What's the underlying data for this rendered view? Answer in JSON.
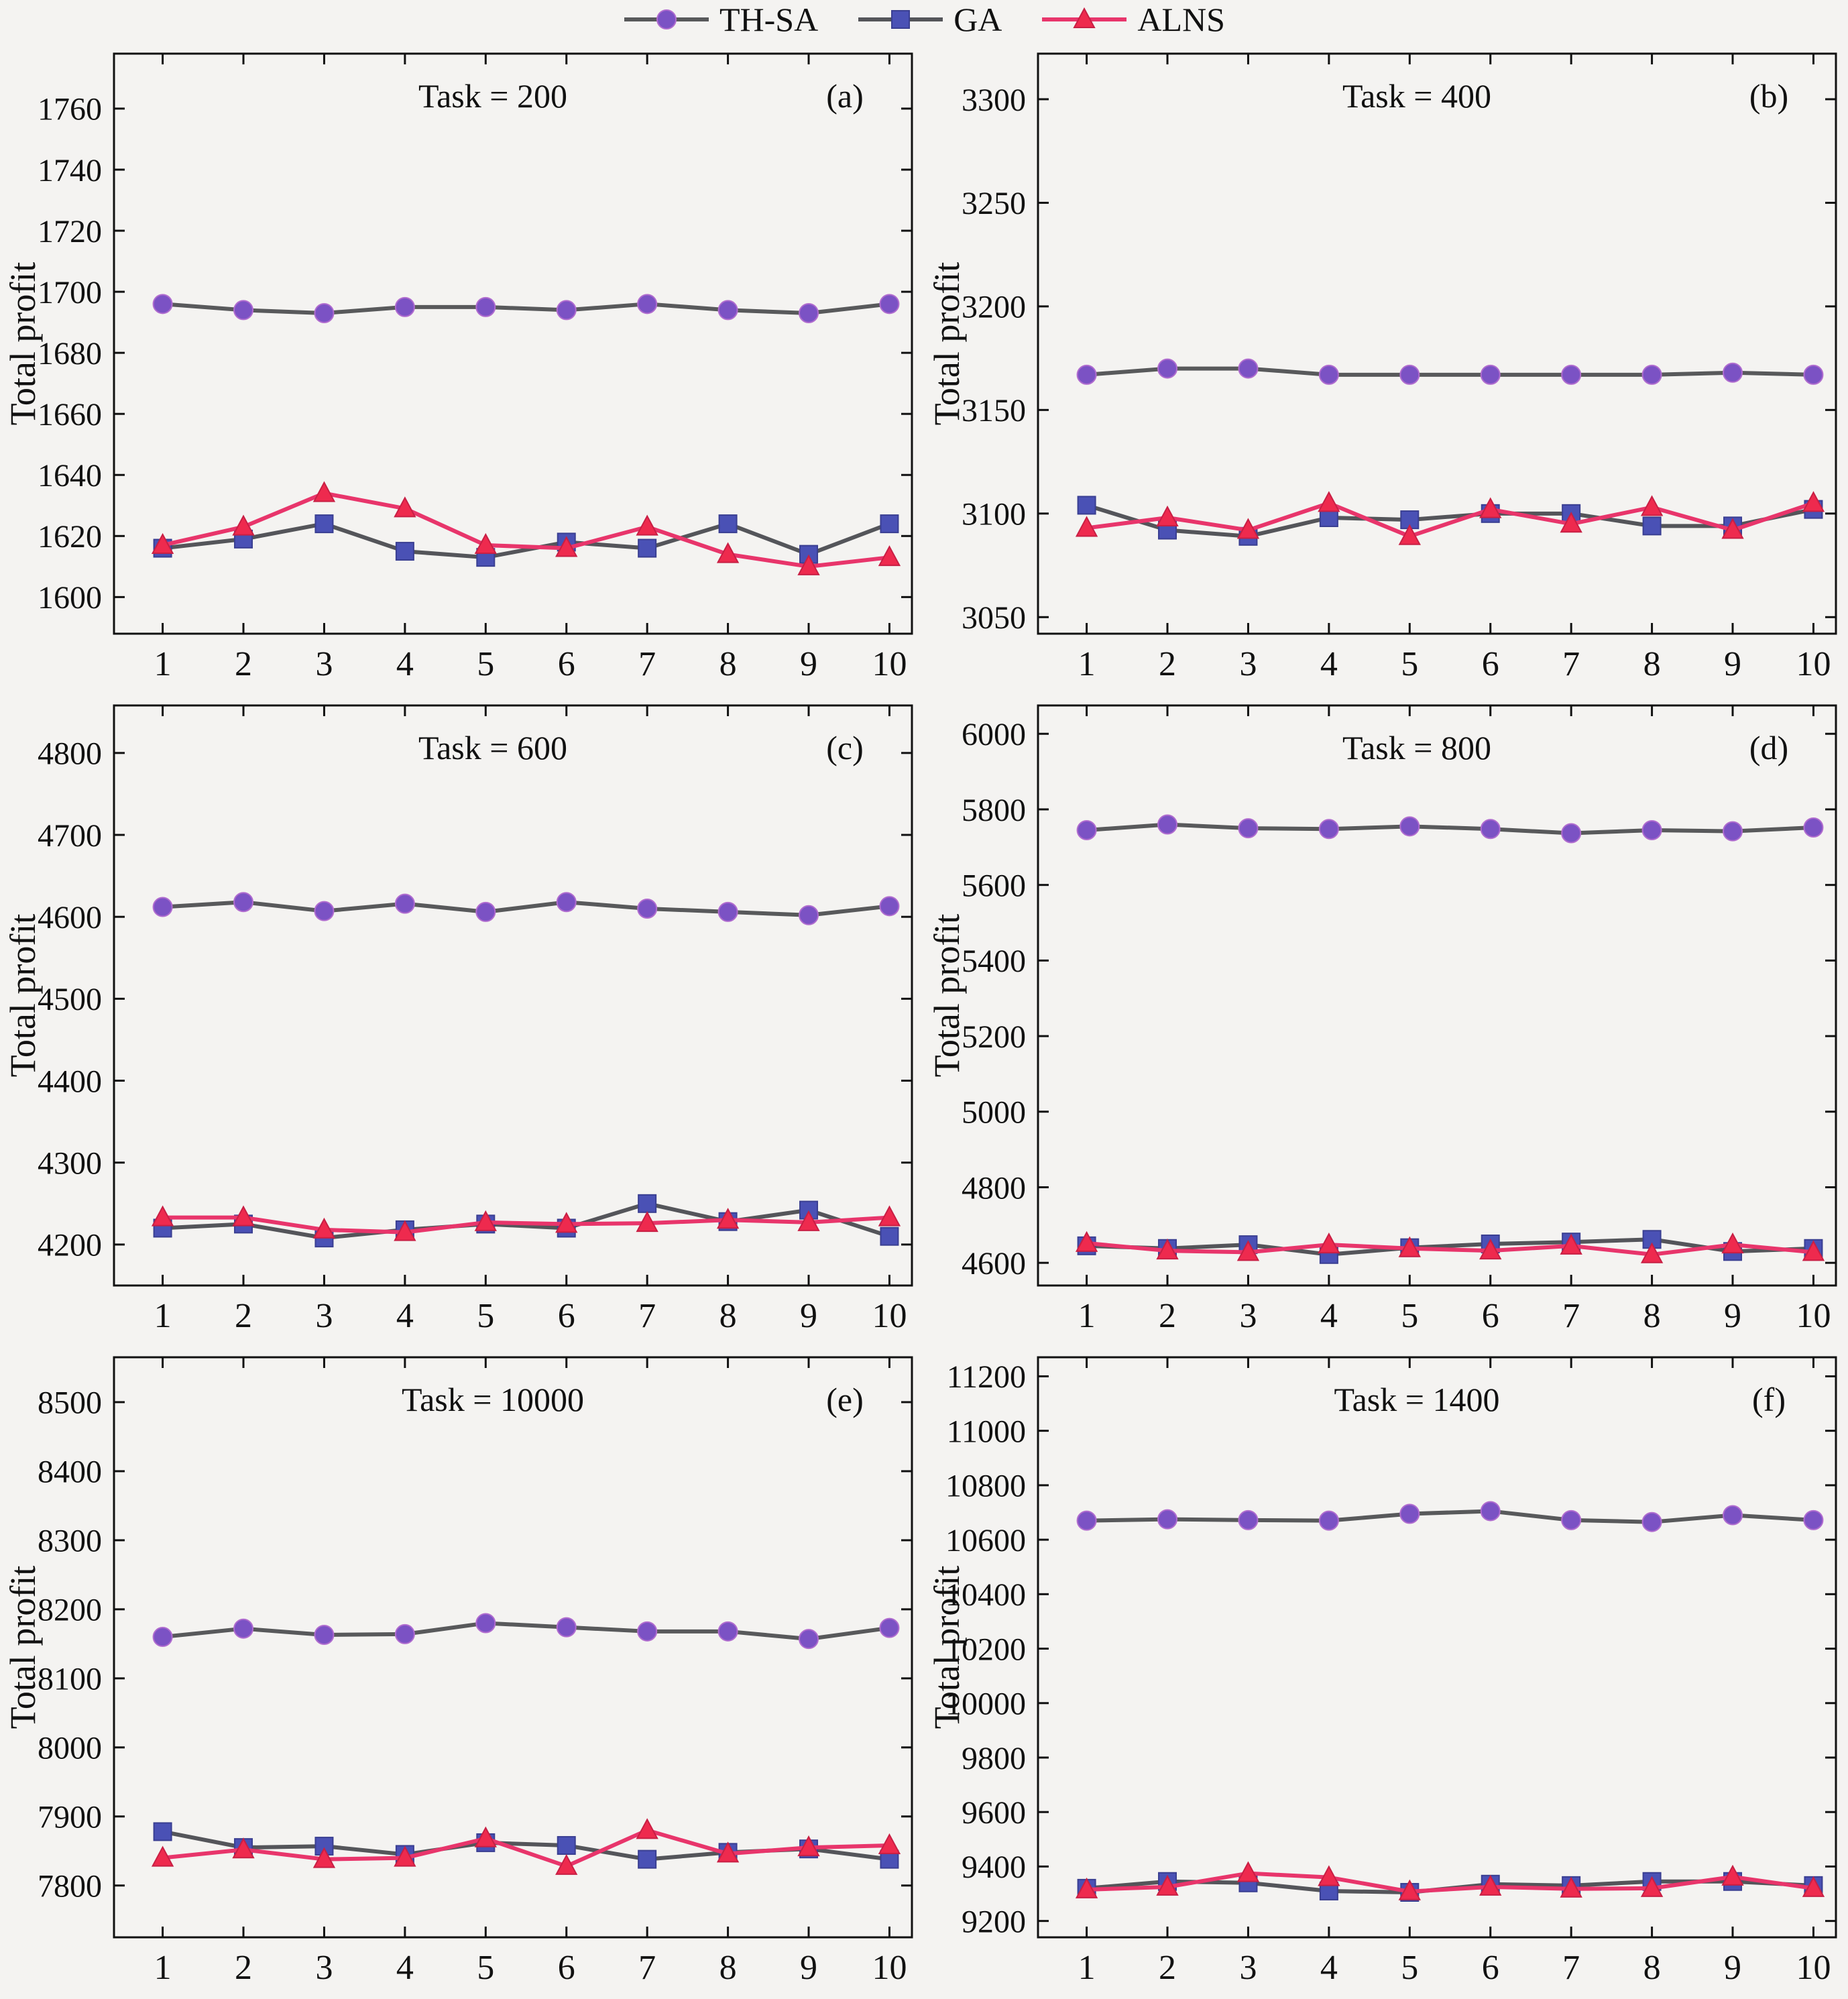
{
  "figure": {
    "ylabel": "Total profit",
    "background": "#f4f3f1",
    "axis_color": "#111111",
    "legend": [
      {
        "name": "TH-SA",
        "marker": "circle",
        "marker_color": "#7b52c4",
        "marker_edge": "#b06ccf",
        "line_color": "#58595b"
      },
      {
        "name": "GA",
        "marker": "square",
        "marker_color": "#4a51b5",
        "marker_edge": "#3a3f92",
        "line_color": "#54555a"
      },
      {
        "name": "ALNS",
        "marker": "triangle",
        "marker_color": "#ee2a4e",
        "marker_edge": "#c81f44",
        "line_color": "#e8356b"
      }
    ]
  },
  "chart_data": [
    {
      "type": "line",
      "title": "Task = 200",
      "panel_label": "(a)",
      "ylabel": "Total profit",
      "x": [
        1,
        2,
        3,
        4,
        5,
        6,
        7,
        8,
        9,
        10
      ],
      "ylim": [
        1588,
        1778
      ],
      "yticks": [
        1600,
        1620,
        1640,
        1660,
        1680,
        1700,
        1720,
        1740,
        1760
      ],
      "series": [
        {
          "name": "TH-SA",
          "values": [
            1696,
            1694,
            1693,
            1695,
            1695,
            1694,
            1696,
            1694,
            1693,
            1696
          ]
        },
        {
          "name": "GA",
          "values": [
            1616,
            1619,
            1624,
            1615,
            1613,
            1618,
            1616,
            1624,
            1614,
            1624
          ]
        },
        {
          "name": "ALNS",
          "values": [
            1617,
            1623,
            1634,
            1629,
            1617,
            1616,
            1623,
            1614,
            1610,
            1613
          ]
        }
      ]
    },
    {
      "type": "line",
      "title": "Task = 400",
      "panel_label": "(b)",
      "ylabel": "Total profit",
      "x": [
        1,
        2,
        3,
        4,
        5,
        6,
        7,
        8,
        9,
        10
      ],
      "ylim": [
        3042,
        3322
      ],
      "yticks": [
        3050,
        3100,
        3150,
        3200,
        3250,
        3300
      ],
      "series": [
        {
          "name": "TH-SA",
          "values": [
            3167,
            3170,
            3170,
            3167,
            3167,
            3167,
            3167,
            3167,
            3168,
            3167
          ]
        },
        {
          "name": "GA",
          "values": [
            3104,
            3092,
            3089,
            3098,
            3097,
            3100,
            3100,
            3094,
            3094,
            3102
          ]
        },
        {
          "name": "ALNS",
          "values": [
            3093,
            3098,
            3092,
            3105,
            3089,
            3102,
            3095,
            3103,
            3092,
            3105
          ]
        }
      ]
    },
    {
      "type": "line",
      "title": "Task = 600",
      "panel_label": "(c)",
      "ylabel": "Total profit",
      "x": [
        1,
        2,
        3,
        4,
        5,
        6,
        7,
        8,
        9,
        10
      ],
      "ylim": [
        4150,
        4858
      ],
      "yticks": [
        4200,
        4300,
        4400,
        4500,
        4600,
        4700,
        4800
      ],
      "series": [
        {
          "name": "TH-SA",
          "values": [
            4612,
            4618,
            4607,
            4616,
            4606,
            4618,
            4610,
            4606,
            4602,
            4613
          ]
        },
        {
          "name": "GA",
          "values": [
            4220,
            4225,
            4208,
            4218,
            4225,
            4220,
            4250,
            4228,
            4242,
            4210
          ]
        },
        {
          "name": "ALNS",
          "values": [
            4233,
            4233,
            4218,
            4215,
            4227,
            4225,
            4226,
            4230,
            4227,
            4233
          ]
        }
      ]
    },
    {
      "type": "line",
      "title": "Task = 800",
      "panel_label": "(d)",
      "ylabel": "Total profit",
      "x": [
        1,
        2,
        3,
        4,
        5,
        6,
        7,
        8,
        9,
        10
      ],
      "ylim": [
        4540,
        6075
      ],
      "yticks": [
        4600,
        4800,
        5000,
        5200,
        5400,
        5600,
        5800,
        6000
      ],
      "series": [
        {
          "name": "TH-SA",
          "values": [
            5745,
            5760,
            5750,
            5748,
            5755,
            5748,
            5737,
            5745,
            5742,
            5752
          ]
        },
        {
          "name": "GA",
          "values": [
            4645,
            4638,
            4648,
            4622,
            4640,
            4650,
            4655,
            4662,
            4630,
            4638
          ]
        },
        {
          "name": "ALNS",
          "values": [
            4652,
            4632,
            4628,
            4648,
            4638,
            4632,
            4645,
            4622,
            4648,
            4628
          ]
        }
      ]
    },
    {
      "type": "line",
      "title": "Task = 10000",
      "panel_label": "(e)",
      "ylabel": "Total profit",
      "x": [
        1,
        2,
        3,
        4,
        5,
        6,
        7,
        8,
        9,
        10
      ],
      "ylim": [
        7725,
        8565
      ],
      "yticks": [
        7800,
        7900,
        8000,
        8100,
        8200,
        8300,
        8400,
        8500
      ],
      "series": [
        {
          "name": "TH-SA",
          "values": [
            8160,
            8172,
            8163,
            8164,
            8180,
            8174,
            8168,
            8168,
            8157,
            8173
          ]
        },
        {
          "name": "GA",
          "values": [
            7878,
            7855,
            7857,
            7845,
            7862,
            7858,
            7838,
            7848,
            7853,
            7838
          ]
        },
        {
          "name": "ALNS",
          "values": [
            7840,
            7852,
            7838,
            7840,
            7868,
            7828,
            7880,
            7846,
            7855,
            7858
          ]
        }
      ]
    },
    {
      "type": "line",
      "title": "Task = 1400",
      "panel_label": "(f)",
      "ylabel": "Total profit",
      "x": [
        1,
        2,
        3,
        4,
        5,
        6,
        7,
        8,
        9,
        10
      ],
      "ylim": [
        9140,
        11270
      ],
      "yticks": [
        9200,
        9400,
        9600,
        9800,
        10000,
        10200,
        10400,
        10600,
        10800,
        11000,
        11200
      ],
      "series": [
        {
          "name": "TH-SA",
          "values": [
            10670,
            10675,
            10672,
            10670,
            10695,
            10705,
            10672,
            10665,
            10690,
            10672
          ]
        },
        {
          "name": "GA",
          "values": [
            9320,
            9345,
            9340,
            9310,
            9305,
            9335,
            9330,
            9345,
            9345,
            9330
          ]
        },
        {
          "name": "ALNS",
          "values": [
            9315,
            9325,
            9375,
            9360,
            9308,
            9325,
            9318,
            9320,
            9362,
            9320
          ]
        }
      ]
    }
  ]
}
